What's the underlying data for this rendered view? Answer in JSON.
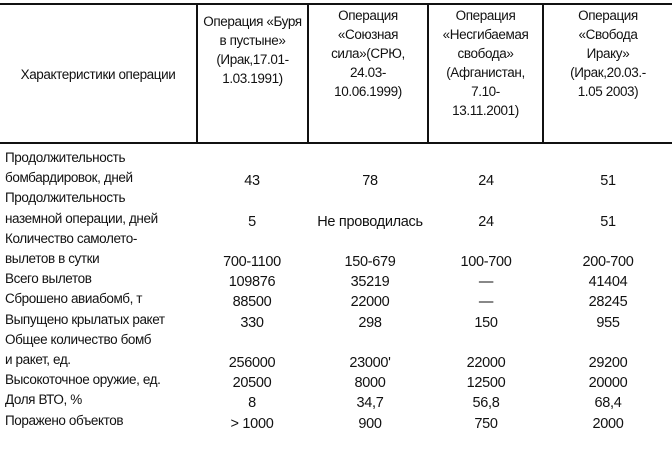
{
  "header": {
    "characteristics": "Характеристики операции",
    "columns": [
      "Операция «Буря\nв пустыне»\n(Ирак,17.01-\n1.03.1991)",
      "Операция\n«Союзная\nсила»(СРЮ,\n24.03-\n10.06.1999)",
      "Операция\n«Несгибаемая\nсвобода»\n(Афганистан,\n7.10-\n13.11.2001)",
      "Операция\n«Свобода\nИраку»\n(Ирак,20.03.-\n1.05 2003)"
    ]
  },
  "rows": [
    {
      "label": [
        "Продолжительность",
        "бомбардировок, дней"
      ],
      "values": [
        "43",
        "78",
        "24",
        "51"
      ]
    },
    {
      "label": [
        "Продолжительность",
        "наземной операции, дней"
      ],
      "values": [
        "5",
        "Не проводилась",
        "24",
        "51"
      ]
    },
    {
      "label": [
        "Количество самолето-",
        "вылетов в сутки"
      ],
      "values": [
        "700-1100",
        "150-679",
        "100-700",
        "200-700"
      ]
    },
    {
      "label": [
        "Всего вылетов"
      ],
      "values": [
        "109876",
        "35219",
        "—",
        "41404"
      ]
    },
    {
      "label": [
        "Сброшено авиабомб, т"
      ],
      "values": [
        "88500",
        "22000",
        "—",
        "28245"
      ]
    },
    {
      "label": [
        "Выпущено крылатых ракет"
      ],
      "values": [
        "330",
        "298",
        "150",
        "955"
      ]
    },
    {
      "label": [
        "Общее количество бомб",
        "и ракет, ед."
      ],
      "values": [
        "256000",
        "23000'",
        "22000",
        "29200"
      ]
    },
    {
      "label": [
        "Высокоточное оружие, ед."
      ],
      "values": [
        "20500",
        "8000",
        "12500",
        "20000"
      ]
    },
    {
      "label": [
        "Доля ВТО, %"
      ],
      "values": [
        "8",
        "34,7",
        "56,8",
        "68,4"
      ]
    },
    {
      "label": [
        "Поражено объектов"
      ],
      "values": [
        "> 1000",
        "900",
        "750",
        "2000"
      ]
    }
  ]
}
